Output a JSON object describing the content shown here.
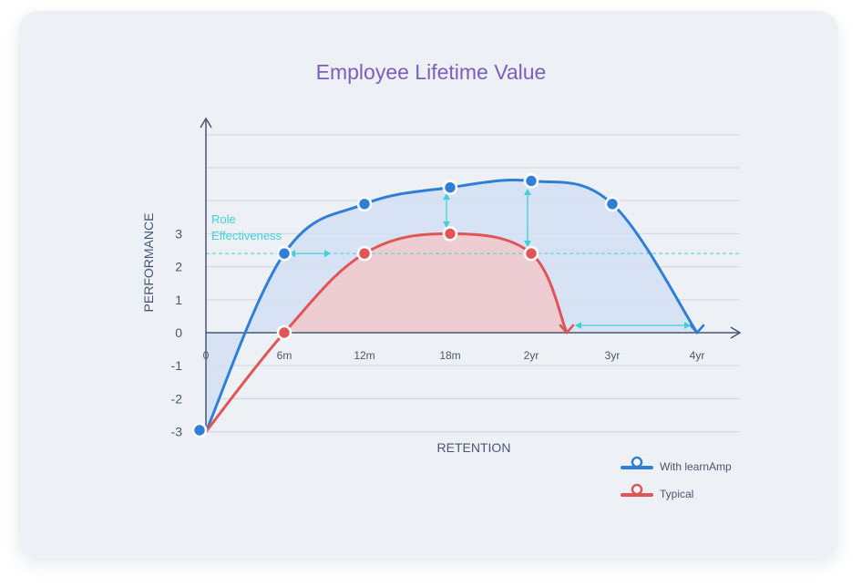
{
  "chart_data": {
    "type": "area",
    "title": "Employee Lifetime Value",
    "xlabel": "RETENTION",
    "ylabel": "PERFORMANCE",
    "x_ticks": [
      "0",
      "6m",
      "12m",
      "18m",
      "2yr",
      "3yr",
      "4yr"
    ],
    "y_ticks": [
      "3",
      "2",
      "1",
      "0",
      "-1",
      "-2",
      "-3"
    ],
    "ylim": [
      -3,
      6
    ],
    "reference_line": {
      "label": "Role Effectiveness",
      "value": 2.4
    },
    "series": [
      {
        "name": "With learnAmp",
        "color": "#2f7fd8",
        "fill": "#d2e1f4",
        "points": [
          [
            "0",
            -3.0
          ],
          [
            "6m",
            2.4
          ],
          [
            "12m",
            3.9
          ],
          [
            "18m",
            4.4
          ],
          [
            "2yr",
            4.6
          ],
          [
            "3yr",
            3.9
          ],
          [
            "4yr",
            0
          ]
        ]
      },
      {
        "name": "Typical",
        "color": "#e05555",
        "fill": "#eecbcf",
        "points": [
          [
            "0",
            -3.0
          ],
          [
            "6m",
            0
          ],
          [
            "12m",
            2.4
          ],
          [
            "18m",
            3.0
          ],
          [
            "2yr",
            2.4
          ],
          [
            "2.5yr",
            0
          ]
        ]
      }
    ],
    "legend": {
      "position": "bottom-right",
      "items": [
        "With learnAmp",
        "Typical"
      ]
    },
    "grid": true
  }
}
